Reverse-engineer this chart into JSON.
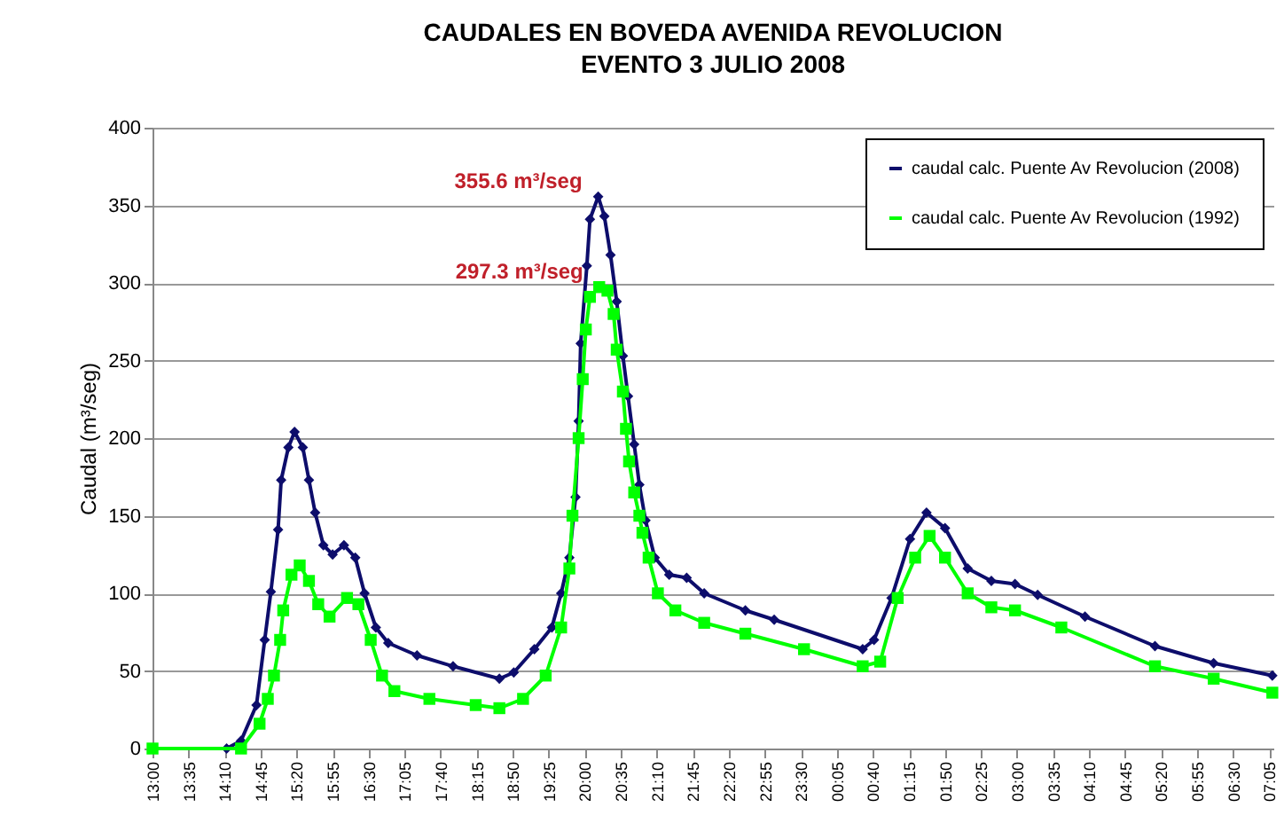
{
  "chart_data": {
    "type": "line",
    "title": "CAUDALES EN BOVEDA AVENIDA REVOLUCION",
    "subtitle": "EVENTO 3 JULIO 2008",
    "ylabel": "Caudal (m³/seg)",
    "xlim": [
      "2008-07-03T13:00",
      "2008-07-04T07:09"
    ],
    "ylim": [
      0,
      400
    ],
    "yticks": [
      0,
      50,
      100,
      150,
      200,
      250,
      300,
      350,
      400
    ],
    "xticks": [
      {
        "value": "2008-07-03T13:00",
        "label": "13:00"
      },
      {
        "value": "2008-07-03T13:35",
        "label": "13:35"
      },
      {
        "value": "2008-07-03T14:10",
        "label": "14:10"
      },
      {
        "value": "2008-07-03T14:45",
        "label": "14:45"
      },
      {
        "value": "2008-07-03T15:20",
        "label": "15:20"
      },
      {
        "value": "2008-07-03T15:55",
        "label": "15:55"
      },
      {
        "value": "2008-07-03T16:30",
        "label": "16:30"
      },
      {
        "value": "2008-07-03T17:05",
        "label": "17:05"
      },
      {
        "value": "2008-07-03T17:40",
        "label": "17:40"
      },
      {
        "value": "2008-07-03T18:15",
        "label": "18:15"
      },
      {
        "value": "2008-07-03T18:50",
        "label": "18:50"
      },
      {
        "value": "2008-07-03T19:25",
        "label": "19:25"
      },
      {
        "value": "2008-07-03T20:00",
        "label": "20:00"
      },
      {
        "value": "2008-07-03T20:35",
        "label": "20:35"
      },
      {
        "value": "2008-07-03T21:10",
        "label": "21:10"
      },
      {
        "value": "2008-07-03T21:45",
        "label": "21:45"
      },
      {
        "value": "2008-07-03T22:20",
        "label": "22:20"
      },
      {
        "value": "2008-07-03T22:55",
        "label": "22:55"
      },
      {
        "value": "2008-07-03T23:30",
        "label": "23:30"
      },
      {
        "value": "2008-07-04T00:05",
        "label": "00:05"
      },
      {
        "value": "2008-07-04T00:40",
        "label": "00:40"
      },
      {
        "value": "2008-07-04T01:15",
        "label": "01:15"
      },
      {
        "value": "2008-07-04T01:50",
        "label": "01:50"
      },
      {
        "value": "2008-07-04T02:25",
        "label": "02:25"
      },
      {
        "value": "2008-07-04T03:00",
        "label": "03:00"
      },
      {
        "value": "2008-07-04T03:35",
        "label": "03:35"
      },
      {
        "value": "2008-07-04T04:10",
        "label": "04:10"
      },
      {
        "value": "2008-07-04T04:45",
        "label": "04:45"
      },
      {
        "value": "2008-07-04T05:20",
        "label": "05:20"
      },
      {
        "value": "2008-07-04T05:55",
        "label": "05:55"
      },
      {
        "value": "2008-07-04T06:30",
        "label": "06:30"
      },
      {
        "value": "2008-07-04T07:05",
        "label": "07:05"
      }
    ],
    "grid": "y",
    "legend": "top right",
    "line_style": "solid",
    "annotations": [
      {
        "text": "355.6 m³/seg",
        "x": "2008-07-03T20:13",
        "y": 355.6
      },
      {
        "text": "297.3 m³/seg",
        "x": "2008-07-03T20:14",
        "y": 297.3
      }
    ],
    "series": [
      {
        "name": "caudal calc. Puente Av Revolucion (2008)",
        "color": "#0d0d6b",
        "marker": "diamond",
        "x": [
          "2008-07-03T13:00",
          "2008-07-03T14:12",
          "2008-07-03T14:26",
          "2008-07-03T14:41",
          "2008-07-03T14:49",
          "2008-07-03T14:55",
          "2008-07-03T15:02",
          "2008-07-03T15:05",
          "2008-07-03T15:12",
          "2008-07-03T15:18",
          "2008-07-03T15:26",
          "2008-07-03T15:32",
          "2008-07-03T15:38",
          "2008-07-03T15:46",
          "2008-07-03T15:55",
          "2008-07-03T16:06",
          "2008-07-03T16:17",
          "2008-07-03T16:26",
          "2008-07-03T16:37",
          "2008-07-03T16:49",
          "2008-07-03T17:17",
          "2008-07-03T17:52",
          "2008-07-03T18:37",
          "2008-07-03T18:51",
          "2008-07-03T19:11",
          "2008-07-03T19:28",
          "2008-07-03T19:37",
          "2008-07-03T19:45",
          "2008-07-03T19:51",
          "2008-07-03T19:54",
          "2008-07-03T19:56",
          "2008-07-03T20:02",
          "2008-07-03T20:05",
          "2008-07-03T20:13",
          "2008-07-03T20:19",
          "2008-07-03T20:25",
          "2008-07-03T20:31",
          "2008-07-03T20:37",
          "2008-07-03T20:42",
          "2008-07-03T20:48",
          "2008-07-03T20:53",
          "2008-07-03T20:59",
          "2008-07-03T21:08",
          "2008-07-03T21:22",
          "2008-07-03T21:39",
          "2008-07-03T21:56",
          "2008-07-03T22:36",
          "2008-07-03T23:04",
          "2008-07-04T00:30",
          "2008-07-04T00:41",
          "2008-07-04T00:58",
          "2008-07-04T01:16",
          "2008-07-04T01:32",
          "2008-07-04T01:50",
          "2008-07-04T02:12",
          "2008-07-04T02:35",
          "2008-07-04T02:58",
          "2008-07-04T03:20",
          "2008-07-04T04:06",
          "2008-07-04T05:14",
          "2008-07-04T06:11",
          "2008-07-04T07:08"
        ],
        "values": [
          0,
          0,
          5,
          28,
          70,
          101,
          141,
          173,
          194,
          204,
          194,
          173,
          152,
          131,
          125,
          131,
          123,
          100,
          78,
          68,
          60,
          53,
          45,
          49,
          64,
          78,
          100,
          123,
          162,
          211,
          261,
          311,
          341,
          355.6,
          343,
          318,
          288,
          253,
          227,
          196,
          170,
          147,
          123,
          112,
          110,
          100,
          89,
          83,
          64,
          70,
          97,
          135,
          152,
          142,
          116,
          108,
          106,
          99,
          85,
          66,
          55,
          47
        ]
      },
      {
        "name": "caudal calc. Puente Av Revolucion (1992)",
        "color": "#00ff00",
        "marker": "square",
        "x": [
          "2008-07-03T13:00",
          "2008-07-03T14:26",
          "2008-07-03T14:44",
          "2008-07-03T14:52",
          "2008-07-03T14:58",
          "2008-07-03T15:04",
          "2008-07-03T15:07",
          "2008-07-03T15:15",
          "2008-07-03T15:23",
          "2008-07-03T15:32",
          "2008-07-03T15:41",
          "2008-07-03T15:52",
          "2008-07-03T16:09",
          "2008-07-03T16:20",
          "2008-07-03T16:32",
          "2008-07-03T16:43",
          "2008-07-03T16:55",
          "2008-07-03T17:29",
          "2008-07-03T18:14",
          "2008-07-03T18:37",
          "2008-07-03T19:00",
          "2008-07-03T19:22",
          "2008-07-03T19:37",
          "2008-07-03T19:45",
          "2008-07-03T19:48",
          "2008-07-03T19:54",
          "2008-07-03T19:58",
          "2008-07-03T20:01",
          "2008-07-03T20:05",
          "2008-07-03T20:14",
          "2008-07-03T20:22",
          "2008-07-03T20:28",
          "2008-07-03T20:31",
          "2008-07-03T20:37",
          "2008-07-03T20:40",
          "2008-07-03T20:43",
          "2008-07-03T20:48",
          "2008-07-03T20:53",
          "2008-07-03T20:56",
          "2008-07-03T21:02",
          "2008-07-03T21:11",
          "2008-07-03T21:28",
          "2008-07-03T21:56",
          "2008-07-03T22:36",
          "2008-07-03T23:33",
          "2008-07-04T00:30",
          "2008-07-04T00:47",
          "2008-07-04T01:04",
          "2008-07-04T01:21",
          "2008-07-04T01:35",
          "2008-07-04T01:50",
          "2008-07-04T02:12",
          "2008-07-04T02:35",
          "2008-07-04T02:58",
          "2008-07-04T03:43",
          "2008-07-04T05:14",
          "2008-07-04T06:11",
          "2008-07-04T07:08"
        ],
        "values": [
          0,
          0,
          16,
          32,
          47,
          70,
          89,
          112,
          118,
          108,
          93,
          85,
          97,
          93,
          70,
          47,
          37,
          32,
          28,
          26,
          32,
          47,
          78,
          116,
          150,
          200,
          238,
          270,
          291,
          297.3,
          295,
          280,
          257,
          230,
          206,
          185,
          165,
          150,
          139,
          123,
          100,
          89,
          81,
          74,
          64,
          53,
          56,
          97,
          123,
          137,
          123,
          100,
          91,
          89,
          78,
          53,
          45,
          36
        ]
      }
    ]
  }
}
